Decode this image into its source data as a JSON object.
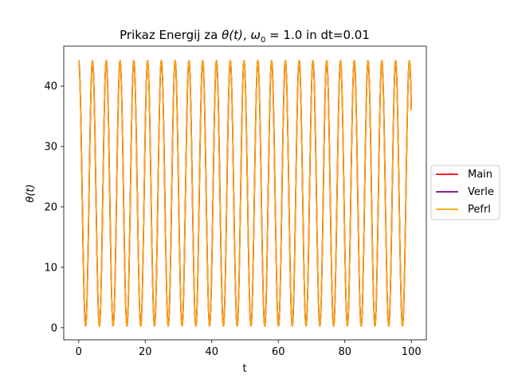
{
  "chart_data": {
    "type": "line",
    "title_main": "Prikaz Energij za ",
    "title_theta": "θ(t)",
    "title_mid": ", ",
    "title_omega": "ω",
    "title_omega_sub": "0",
    "title_tail": " = 1.0 in dt=0.01",
    "xlabel": "t",
    "ylabel": "θ(t)",
    "xlim": [
      -4.5,
      104.5
    ],
    "ylim": [
      -2,
      46.6
    ],
    "xticks": [
      0,
      20,
      40,
      60,
      80,
      100
    ],
    "yticks": [
      0,
      10,
      20,
      30,
      40
    ],
    "legend_position": "outside-right",
    "signal": {
      "center": 22.25,
      "amplitude": 21.95,
      "period": 4.19,
      "t_start": 0,
      "t_end": 100,
      "start_value": 44.2,
      "end_value": 36.0
    },
    "series": [
      {
        "name": "Main",
        "color": "#ff0000"
      },
      {
        "name": "Verle",
        "color": "#800080"
      },
      {
        "name": "Pefrl",
        "color": "#ffa500"
      }
    ]
  }
}
